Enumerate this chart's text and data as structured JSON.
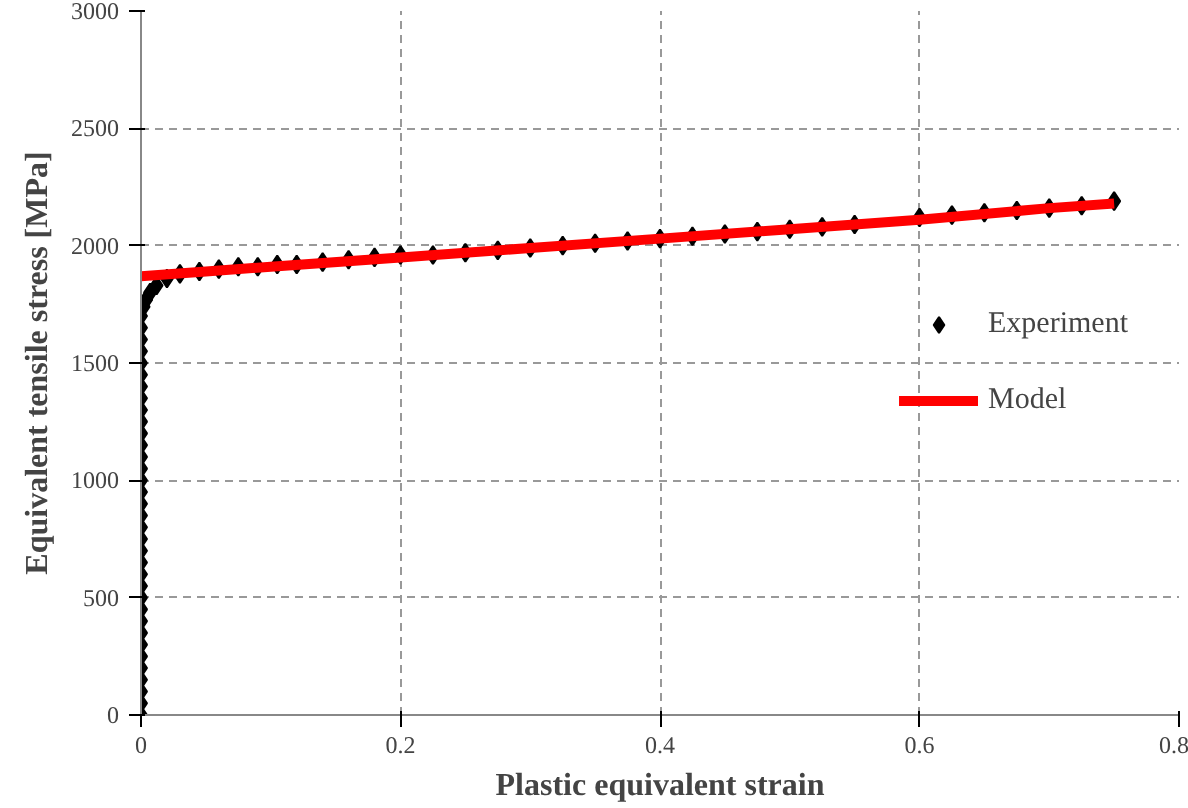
{
  "chart_data": {
    "type": "scatter",
    "xlabel": "Plastic equivalent strain",
    "ylabel": "Equivalent tensile stress [MPa]",
    "xlim": [
      0,
      0.8
    ],
    "xticks": [
      0,
      0.2,
      0.4,
      0.6,
      0.8
    ],
    "ylim": [
      0,
      3000
    ],
    "yticks": [
      0,
      500,
      1000,
      1500,
      2000,
      2500,
      3000
    ],
    "grid": true,
    "legend": "right",
    "series": [
      {
        "name": "Experiment",
        "marker": "diamond",
        "color": "#000000",
        "x": [
          0,
          0,
          0,
          0,
          0,
          0,
          0,
          0,
          0,
          0,
          0,
          0,
          0,
          0,
          0,
          0,
          0,
          0,
          0,
          0,
          0,
          0,
          0,
          0,
          0,
          0,
          0,
          0,
          0,
          0,
          0,
          0,
          0,
          0,
          0,
          0.002,
          0.004,
          0.007,
          0.012,
          0.02,
          0.03,
          0.045,
          0.06,
          0.075,
          0.09,
          0.105,
          0.12,
          0.14,
          0.16,
          0.18,
          0.2,
          0.225,
          0.25,
          0.275,
          0.3,
          0.325,
          0.35,
          0.375,
          0.4,
          0.425,
          0.45,
          0.475,
          0.5,
          0.525,
          0.55,
          0.6,
          0.625,
          0.65,
          0.675,
          0.7,
          0.725,
          0.75
        ],
        "values": [
          0,
          50,
          100,
          150,
          200,
          250,
          300,
          350,
          400,
          450,
          500,
          550,
          600,
          650,
          700,
          750,
          800,
          850,
          900,
          950,
          1000,
          1050,
          1100,
          1150,
          1200,
          1250,
          1300,
          1350,
          1400,
          1450,
          1500,
          1550,
          1600,
          1650,
          1700,
          1740,
          1770,
          1800,
          1830,
          1860,
          1880,
          1890,
          1900,
          1910,
          1910,
          1920,
          1920,
          1930,
          1940,
          1950,
          1960,
          1960,
          1970,
          1980,
          1990,
          2000,
          2010,
          2020,
          2030,
          2040,
          2050,
          2060,
          2070,
          2080,
          2090,
          2120,
          2130,
          2140,
          2150,
          2160,
          2170,
          2190
        ]
      },
      {
        "name": "Model",
        "type": "line",
        "color": "#ff0000",
        "x": [
          0,
          0.05,
          0.1,
          0.2,
          0.3,
          0.4,
          0.5,
          0.6,
          0.7,
          0.75
        ],
        "values": [
          1870,
          1890,
          1910,
          1950,
          1990,
          2030,
          2070,
          2110,
          2160,
          2180
        ]
      }
    ]
  }
}
